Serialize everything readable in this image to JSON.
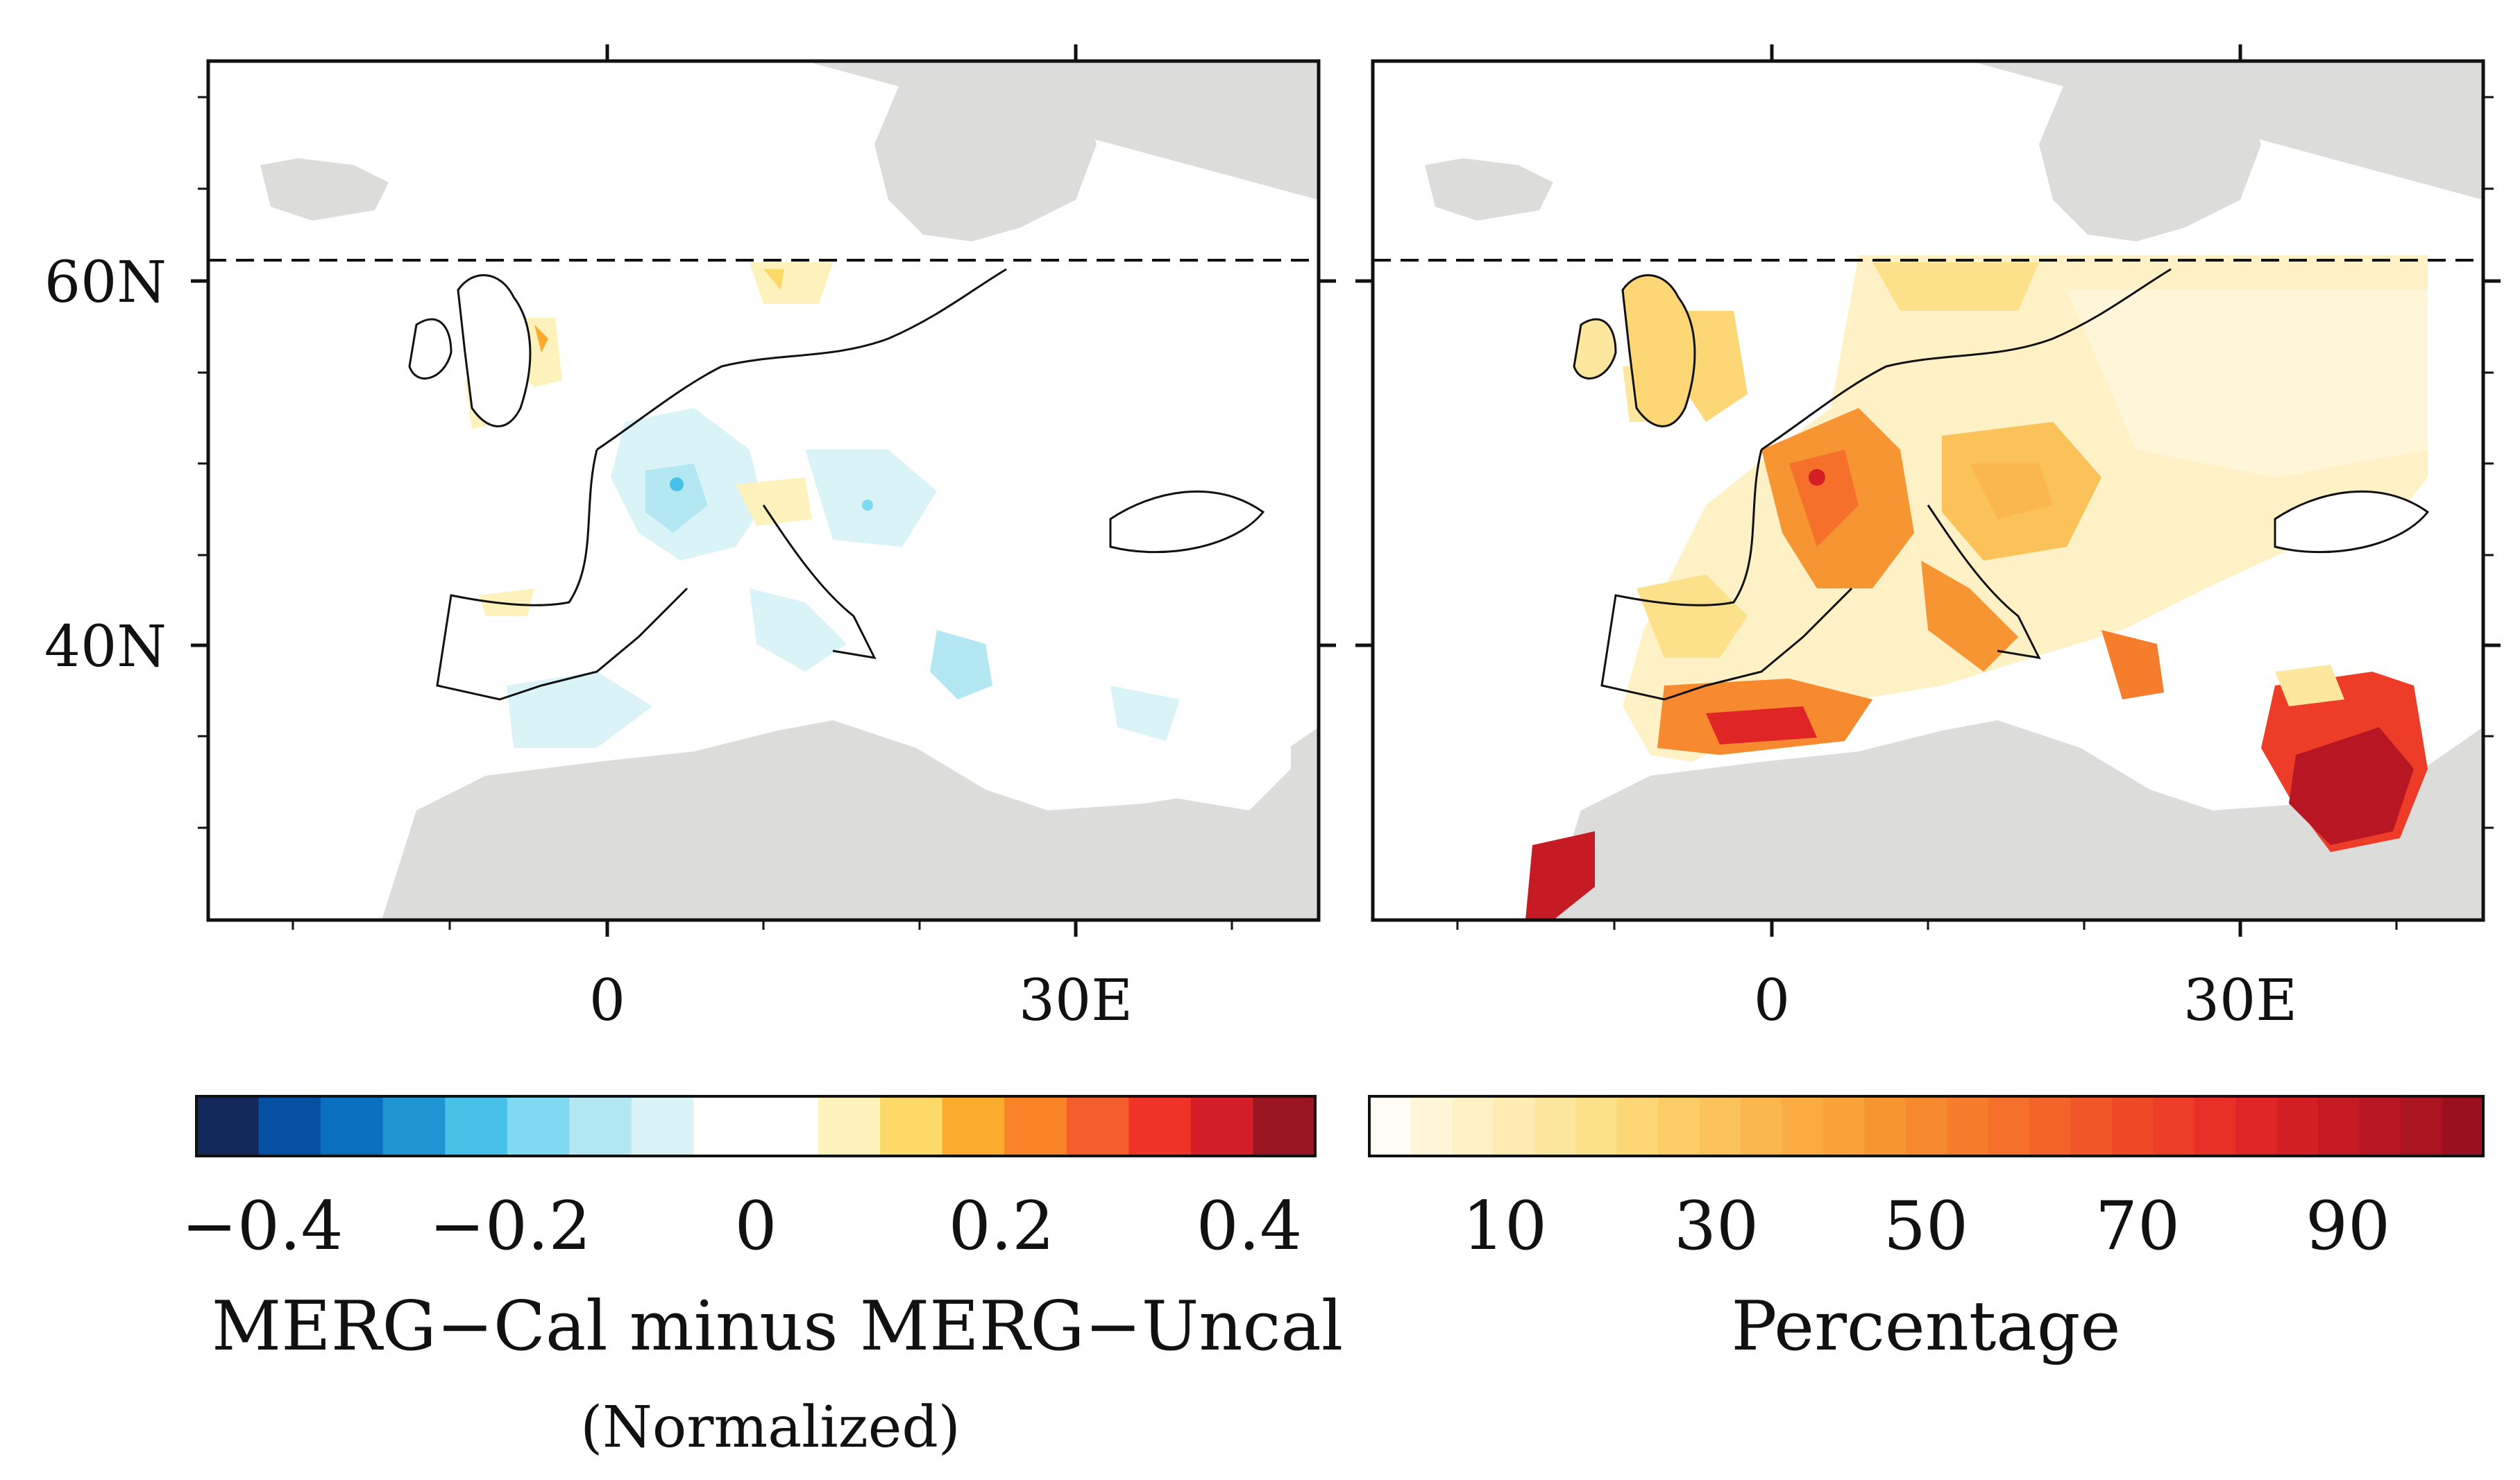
{
  "colors": {
    "land_gray": "#dcdcda",
    "sea": "#ffffff",
    "coast": "#111111",
    "frame": "#111111"
  },
  "left_panel": {
    "y_tick_labels": [
      "60N",
      "40N"
    ],
    "x_tick_labels": [
      "0",
      "30E"
    ]
  },
  "right_panel": {
    "x_tick_labels": [
      "0",
      "30E"
    ]
  },
  "left_colorbar": {
    "tick_labels": [
      "−0.4",
      "−0.2",
      "0",
      "0.2",
      "0.4"
    ],
    "title": "MERG−Cal minus MERG−Uncal",
    "subtitle": "(Normalized)",
    "colors": [
      "#14285c",
      "#0650a3",
      "#0b6fc0",
      "#1f95d3",
      "#48c1e8",
      "#7fd9f0",
      "#b3e8f3",
      "#daf3f7",
      "#ffffff",
      "#ffffff",
      "#fdf2bb",
      "#fdd968",
      "#fbab2c",
      "#f88427",
      "#f35d2b",
      "#ef3427",
      "#d51f28",
      "#9a1622"
    ]
  },
  "right_colorbar": {
    "tick_labels": [
      "10",
      "30",
      "50",
      "70",
      "90"
    ],
    "title": "Percentage",
    "colors": [
      "#fffdf5",
      "#fff6da",
      "#fff1c6",
      "#ffecb2",
      "#fde79e",
      "#fde08a",
      "#fdd676",
      "#fccc66",
      "#fcc25a",
      "#fbb74e",
      "#faac43",
      "#f9a13a",
      "#f89533",
      "#f7892f",
      "#f67d2c",
      "#f5702b",
      "#f3632a",
      "#f15629",
      "#ef4928",
      "#ed3c28",
      "#e93028",
      "#e02526",
      "#d41f25",
      "#c61a24",
      "#b81622",
      "#aa1320",
      "#9b101e"
    ]
  }
}
